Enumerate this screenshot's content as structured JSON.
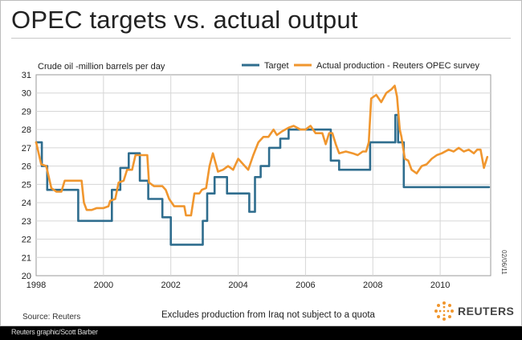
{
  "header": {
    "title": "OPEC targets vs. actual output"
  },
  "chart_data": {
    "type": "line",
    "ylabel": "Crude oil -million barrels per day",
    "xlim": [
      1998,
      2011.5
    ],
    "ylim": [
      20,
      31
    ],
    "x_ticks": [
      1998,
      2000,
      2002,
      2004,
      2006,
      2008,
      2010
    ],
    "y_ticks": [
      20,
      21,
      22,
      23,
      24,
      25,
      26,
      27,
      28,
      29,
      30,
      31
    ],
    "grid": true,
    "legend_position": "top-right",
    "series": [
      {
        "name": "Target",
        "color": "#2f6d8e",
        "step": true,
        "points": [
          [
            1998.0,
            27.3
          ],
          [
            1998.17,
            26.0
          ],
          [
            1998.33,
            24.7
          ],
          [
            1999.25,
            23.0
          ],
          [
            2000.25,
            24.7
          ],
          [
            2000.5,
            25.9
          ],
          [
            2000.75,
            26.7
          ],
          [
            2001.08,
            25.2
          ],
          [
            2001.33,
            24.2
          ],
          [
            2001.75,
            23.2
          ],
          [
            2002.0,
            21.7
          ],
          [
            2002.95,
            23.0
          ],
          [
            2003.08,
            24.5
          ],
          [
            2003.3,
            25.4
          ],
          [
            2003.5,
            25.4
          ],
          [
            2003.67,
            24.5
          ],
          [
            2004.08,
            24.5
          ],
          [
            2004.33,
            23.5
          ],
          [
            2004.5,
            25.4
          ],
          [
            2004.67,
            26.0
          ],
          [
            2004.92,
            27.0
          ],
          [
            2005.25,
            27.5
          ],
          [
            2005.5,
            28.0
          ],
          [
            2006.75,
            26.3
          ],
          [
            2007.0,
            25.8
          ],
          [
            2007.58,
            25.8
          ],
          [
            2007.92,
            27.3
          ],
          [
            2008.58,
            27.3
          ],
          [
            2008.67,
            28.8
          ],
          [
            2008.75,
            27.3
          ],
          [
            2008.92,
            24.85
          ],
          [
            2011.45,
            24.85
          ]
        ]
      },
      {
        "name": "Actual production - Reuters OPEC survey",
        "color": "#f0962e",
        "step": false,
        "points": [
          [
            1998.0,
            27.3
          ],
          [
            1998.15,
            26.1
          ],
          [
            1998.3,
            26.0
          ],
          [
            1998.45,
            24.8
          ],
          [
            1998.6,
            24.6
          ],
          [
            1998.75,
            24.6
          ],
          [
            1998.85,
            25.2
          ],
          [
            1999.0,
            25.2
          ],
          [
            1999.2,
            25.2
          ],
          [
            1999.35,
            25.2
          ],
          [
            1999.42,
            24.0
          ],
          [
            1999.5,
            23.6
          ],
          [
            1999.65,
            23.6
          ],
          [
            1999.8,
            23.7
          ],
          [
            2000.0,
            23.7
          ],
          [
            2000.15,
            23.8
          ],
          [
            2000.2,
            24.1
          ],
          [
            2000.35,
            24.2
          ],
          [
            2000.45,
            25.1
          ],
          [
            2000.6,
            25.2
          ],
          [
            2000.7,
            25.8
          ],
          [
            2000.85,
            25.8
          ],
          [
            2000.95,
            26.6
          ],
          [
            2001.15,
            26.6
          ],
          [
            2001.3,
            26.6
          ],
          [
            2001.35,
            25.1
          ],
          [
            2001.5,
            24.9
          ],
          [
            2001.75,
            24.9
          ],
          [
            2001.85,
            24.7
          ],
          [
            2001.95,
            24.2
          ],
          [
            2002.1,
            23.8
          ],
          [
            2002.3,
            23.8
          ],
          [
            2002.4,
            23.8
          ],
          [
            2002.45,
            23.3
          ],
          [
            2002.6,
            23.3
          ],
          [
            2002.7,
            24.5
          ],
          [
            2002.85,
            24.5
          ],
          [
            2002.92,
            24.7
          ],
          [
            2003.05,
            24.8
          ],
          [
            2003.15,
            26.0
          ],
          [
            2003.25,
            26.7
          ],
          [
            2003.4,
            25.7
          ],
          [
            2003.55,
            25.8
          ],
          [
            2003.7,
            26.0
          ],
          [
            2003.85,
            25.8
          ],
          [
            2004.0,
            26.4
          ],
          [
            2004.15,
            26.1
          ],
          [
            2004.3,
            25.8
          ],
          [
            2004.45,
            26.6
          ],
          [
            2004.6,
            27.3
          ],
          [
            2004.75,
            27.6
          ],
          [
            2004.9,
            27.6
          ],
          [
            2005.05,
            28.0
          ],
          [
            2005.15,
            27.7
          ],
          [
            2005.3,
            27.9
          ],
          [
            2005.5,
            28.1
          ],
          [
            2005.65,
            28.2
          ],
          [
            2005.85,
            28.0
          ],
          [
            2006.0,
            28.0
          ],
          [
            2006.15,
            28.2
          ],
          [
            2006.3,
            27.8
          ],
          [
            2006.5,
            27.8
          ],
          [
            2006.6,
            27.2
          ],
          [
            2006.7,
            27.8
          ],
          [
            2006.8,
            27.8
          ],
          [
            2006.9,
            27.2
          ],
          [
            2007.0,
            26.7
          ],
          [
            2007.2,
            26.8
          ],
          [
            2007.4,
            26.7
          ],
          [
            2007.55,
            26.6
          ],
          [
            2007.7,
            26.8
          ],
          [
            2007.8,
            26.8
          ],
          [
            2007.88,
            27.3
          ],
          [
            2007.95,
            29.7
          ],
          [
            2008.1,
            29.9
          ],
          [
            2008.25,
            29.5
          ],
          [
            2008.4,
            30.0
          ],
          [
            2008.55,
            30.2
          ],
          [
            2008.65,
            30.4
          ],
          [
            2008.72,
            29.8
          ],
          [
            2008.8,
            28.0
          ],
          [
            2008.85,
            27.6
          ],
          [
            2008.95,
            26.4
          ],
          [
            2009.05,
            26.3
          ],
          [
            2009.15,
            25.8
          ],
          [
            2009.3,
            25.6
          ],
          [
            2009.45,
            26.0
          ],
          [
            2009.6,
            26.1
          ],
          [
            2009.75,
            26.4
          ],
          [
            2009.9,
            26.6
          ],
          [
            2010.05,
            26.7
          ],
          [
            2010.25,
            26.9
          ],
          [
            2010.4,
            26.8
          ],
          [
            2010.55,
            27.0
          ],
          [
            2010.7,
            26.8
          ],
          [
            2010.85,
            26.9
          ],
          [
            2011.0,
            26.7
          ],
          [
            2011.1,
            26.9
          ],
          [
            2011.2,
            26.9
          ],
          [
            2011.3,
            25.9
          ],
          [
            2011.4,
            26.5
          ]
        ]
      }
    ]
  },
  "footer": {
    "source": "Source: Reuters",
    "note": "Excludes production from Iraq not subject to a quota",
    "credit": "Reuters graphic/Scott Barber",
    "date": "02/06/11",
    "logo_text": "REUTERS"
  }
}
